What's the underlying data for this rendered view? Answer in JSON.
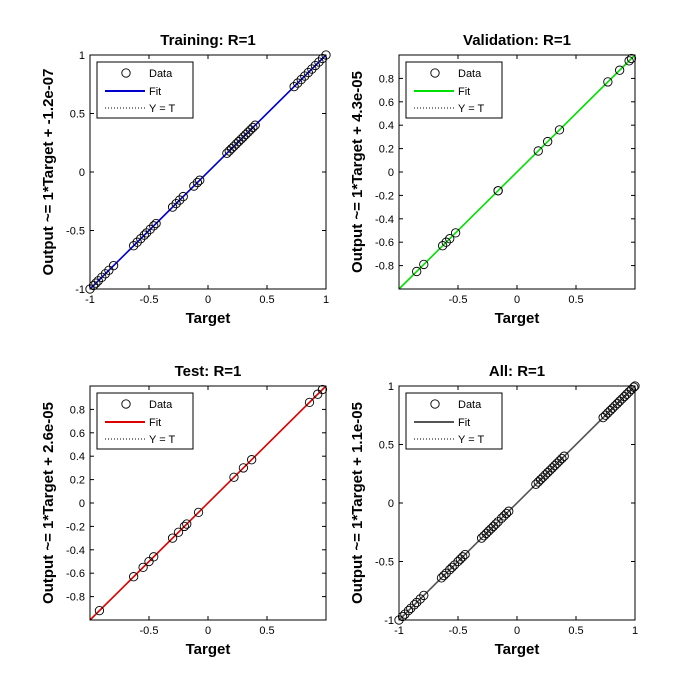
{
  "chart_data": [
    {
      "type": "scatter",
      "title": "Training: R=1",
      "xlabel": "Target",
      "ylabel": "Output ~= 1*Target + -1.2e-07",
      "xlim": [
        -1,
        1
      ],
      "ylim": [
        -1,
        1
      ],
      "xticks": [
        -1,
        -0.5,
        0,
        0.5,
        1
      ],
      "yticks": [
        -1,
        -0.5,
        0,
        0.5,
        1
      ],
      "xtick_labels": [
        "-1",
        "-0.5",
        "0",
        "0.5",
        "1"
      ],
      "ytick_labels": [
        "-1",
        "-0.5",
        "0",
        "0.5",
        "1"
      ],
      "fit_color": "#0000cc",
      "legend_position": "top-left",
      "legend": [
        "Data",
        "Fit",
        "Y = T"
      ],
      "series": [
        {
          "name": "Data",
          "x": [
            -1,
            -0.97,
            -0.95,
            -0.93,
            -0.9,
            -0.87,
            -0.84,
            -0.8,
            -0.63,
            -0.6,
            -0.57,
            -0.54,
            -0.52,
            -0.49,
            -0.46,
            -0.44,
            -0.3,
            -0.27,
            -0.24,
            -0.21,
            -0.12,
            -0.09,
            -0.07,
            0.16,
            0.18,
            0.2,
            0.22,
            0.24,
            0.26,
            0.28,
            0.3,
            0.32,
            0.34,
            0.36,
            0.38,
            0.4,
            0.73,
            0.76,
            0.79,
            0.82,
            0.85,
            0.88,
            0.91,
            0.94,
            0.97,
            1
          ],
          "y": [
            -1,
            -0.97,
            -0.95,
            -0.93,
            -0.9,
            -0.87,
            -0.84,
            -0.8,
            -0.63,
            -0.6,
            -0.57,
            -0.54,
            -0.52,
            -0.49,
            -0.46,
            -0.44,
            -0.3,
            -0.27,
            -0.24,
            -0.21,
            -0.12,
            -0.09,
            -0.07,
            0.16,
            0.18,
            0.2,
            0.22,
            0.24,
            0.26,
            0.28,
            0.3,
            0.32,
            0.34,
            0.36,
            0.38,
            0.4,
            0.73,
            0.76,
            0.79,
            0.82,
            0.85,
            0.88,
            0.91,
            0.94,
            0.97,
            1
          ]
        }
      ]
    },
    {
      "type": "scatter",
      "title": "Validation: R=1",
      "xlabel": "Target",
      "ylabel": "Output ~= 1*Target + 4.3e-05",
      "xlim": [
        -1,
        1
      ],
      "ylim": [
        -1,
        1
      ],
      "xticks": [
        -0.5,
        0,
        0.5
      ],
      "yticks": [
        -0.8,
        -0.6,
        -0.4,
        -0.2,
        0,
        0.2,
        0.4,
        0.6,
        0.8
      ],
      "xtick_labels": [
        "-0.5",
        "0",
        "0.5"
      ],
      "ytick_labels": [
        "-0.8",
        "-0.6",
        "-0.4",
        "-0.2",
        "0",
        "0.2",
        "0.4",
        "0.6",
        "0.8"
      ],
      "fit_color": "#00e000",
      "legend_position": "top-left",
      "legend": [
        "Data",
        "Fit",
        "Y = T"
      ],
      "series": [
        {
          "name": "Data",
          "x": [
            -0.85,
            -0.79,
            -0.63,
            -0.6,
            -0.57,
            -0.52,
            -0.16,
            -0.16,
            0.18,
            0.26,
            0.36,
            0.77,
            0.87,
            0.95,
            0.97
          ],
          "y": [
            -0.85,
            -0.79,
            -0.63,
            -0.6,
            -0.57,
            -0.52,
            -0.16,
            -0.16,
            0.18,
            0.26,
            0.36,
            0.77,
            0.87,
            0.95,
            0.97
          ]
        }
      ]
    },
    {
      "type": "scatter",
      "title": "Test: R=1",
      "xlabel": "Target",
      "ylabel": "Output ~= 1*Target + 2.6e-05",
      "xlim": [
        -1,
        1
      ],
      "ylim": [
        -1,
        1
      ],
      "xticks": [
        -0.5,
        0,
        0.5
      ],
      "yticks": [
        -0.8,
        -0.6,
        -0.4,
        -0.2,
        0,
        0.2,
        0.4,
        0.6,
        0.8
      ],
      "xtick_labels": [
        "-0.5",
        "0",
        "0.5"
      ],
      "ytick_labels": [
        "-0.8",
        "-0.6",
        "-0.4",
        "-0.2",
        "0",
        "0.2",
        "0.4",
        "0.6",
        "0.8"
      ],
      "fit_color": "#dd0000",
      "legend_position": "top-left",
      "legend": [
        "Data",
        "Fit",
        "Y = T"
      ],
      "series": [
        {
          "name": "Data",
          "x": [
            -0.92,
            -0.63,
            -0.55,
            -0.5,
            -0.46,
            -0.3,
            -0.25,
            -0.2,
            -0.18,
            -0.08,
            0.22,
            0.3,
            0.37,
            0.86,
            0.93,
            0.97
          ],
          "y": [
            -0.92,
            -0.63,
            -0.55,
            -0.5,
            -0.46,
            -0.3,
            -0.25,
            -0.2,
            -0.18,
            -0.08,
            0.22,
            0.3,
            0.37,
            0.86,
            0.93,
            0.97
          ]
        }
      ]
    },
    {
      "type": "scatter",
      "title": "All: R=1",
      "xlabel": "Target",
      "ylabel": "Output ~= 1*Target + 1.1e-05",
      "xlim": [
        -1,
        1
      ],
      "ylim": [
        -1,
        1
      ],
      "xticks": [
        -1,
        -0.5,
        0,
        0.5,
        1
      ],
      "yticks": [
        -1,
        -0.5,
        0,
        0.5,
        1
      ],
      "xtick_labels": [
        "-1",
        "-0.5",
        "0",
        "0.5",
        "1"
      ],
      "ytick_labels": [
        "-1",
        "-0.5",
        "0",
        "0.5",
        "1"
      ],
      "fit_color": "#555555",
      "legend_position": "top-left",
      "legend": [
        "Data",
        "Fit",
        "Y = T"
      ],
      "series": [
        {
          "name": "Data",
          "x": [
            -1,
            -0.97,
            -0.95,
            -0.92,
            -0.9,
            -0.87,
            -0.85,
            -0.82,
            -0.79,
            -0.64,
            -0.62,
            -0.6,
            -0.57,
            -0.55,
            -0.53,
            -0.5,
            -0.48,
            -0.46,
            -0.44,
            -0.3,
            -0.28,
            -0.26,
            -0.24,
            -0.22,
            -0.2,
            -0.18,
            -0.16,
            -0.13,
            -0.11,
            -0.09,
            -0.07,
            0.16,
            0.18,
            0.2,
            0.22,
            0.24,
            0.26,
            0.28,
            0.3,
            0.32,
            0.34,
            0.36,
            0.38,
            0.4,
            0.73,
            0.75,
            0.77,
            0.79,
            0.81,
            0.83,
            0.85,
            0.87,
            0.89,
            0.91,
            0.93,
            0.95,
            0.97,
            0.99,
            1
          ],
          "y": [
            -1,
            -0.97,
            -0.95,
            -0.92,
            -0.9,
            -0.87,
            -0.85,
            -0.82,
            -0.79,
            -0.64,
            -0.62,
            -0.6,
            -0.57,
            -0.55,
            -0.53,
            -0.5,
            -0.48,
            -0.46,
            -0.44,
            -0.3,
            -0.28,
            -0.26,
            -0.24,
            -0.22,
            -0.2,
            -0.18,
            -0.16,
            -0.13,
            -0.11,
            -0.09,
            -0.07,
            0.16,
            0.18,
            0.2,
            0.22,
            0.24,
            0.26,
            0.28,
            0.3,
            0.32,
            0.34,
            0.36,
            0.38,
            0.4,
            0.73,
            0.75,
            0.77,
            0.79,
            0.81,
            0.83,
            0.85,
            0.87,
            0.89,
            0.91,
            0.93,
            0.95,
            0.97,
            0.99,
            1
          ]
        }
      ]
    }
  ]
}
